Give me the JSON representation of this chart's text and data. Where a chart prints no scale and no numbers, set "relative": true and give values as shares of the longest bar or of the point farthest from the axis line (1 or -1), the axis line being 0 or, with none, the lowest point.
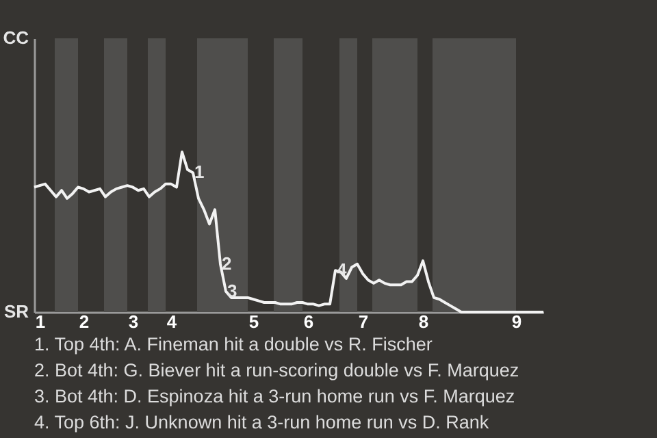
{
  "chart_data": {
    "type": "line",
    "relative": true,
    "categories": [
      null,
      "1",
      null,
      null,
      null,
      null,
      null,
      null,
      null,
      "2",
      null,
      null,
      null,
      null,
      null,
      null,
      null,
      null,
      "3",
      null,
      null,
      null,
      null,
      null,
      null,
      "4",
      null,
      null,
      null,
      null,
      null,
      null,
      null,
      null,
      null,
      null,
      null,
      null,
      null,
      null,
      "5",
      null,
      null,
      null,
      null,
      null,
      null,
      null,
      null,
      null,
      "6",
      null,
      null,
      null,
      null,
      null,
      null,
      null,
      null,
      null,
      "7",
      null,
      null,
      null,
      null,
      null,
      null,
      null,
      null,
      null,
      null,
      "8",
      null,
      null,
      null,
      null,
      null,
      null,
      null,
      null,
      null,
      null,
      null,
      null,
      null,
      null,
      null,
      null,
      "9",
      null,
      null,
      null,
      null,
      null
    ],
    "values": [
      0.78,
      0.79,
      0.8,
      0.76,
      0.72,
      0.76,
      0.71,
      0.74,
      0.78,
      0.77,
      0.75,
      0.76,
      0.77,
      0.72,
      0.75,
      0.77,
      0.78,
      0.79,
      0.78,
      0.76,
      0.77,
      0.72,
      0.75,
      0.77,
      0.8,
      0.8,
      0.78,
      1,
      0.89,
      0.87,
      0.71,
      0.64,
      0.55,
      0.64,
      0.3,
      0.13,
      0.09,
      0.09,
      0.09,
      0.09,
      0.08,
      0.07,
      0.06,
      0.06,
      0.06,
      0.05,
      0.05,
      0.05,
      0.06,
      0.06,
      0.05,
      0.05,
      0.04,
      0.05,
      0.05,
      0.26,
      0.25,
      0.21,
      0.28,
      0.3,
      0.24,
      0.2,
      0.18,
      0.2,
      0.18,
      0.17,
      0.17,
      0.17,
      0.19,
      0.19,
      0.23,
      0.32,
      0.19,
      0.09,
      0.08,
      0.06,
      0.04,
      0.02,
      0,
      0,
      0,
      0,
      0,
      0,
      0,
      0,
      0,
      0,
      0,
      0,
      0,
      0,
      0,
      0
    ],
    "color": "#f2f2f2",
    "annotations": [
      {
        "text": "1",
        "y": 0.87
      },
      {
        "text": "2",
        "y": 0.3
      },
      {
        "text": "3",
        "y": 0.13
      },
      {
        "text": "4",
        "y": 0.26
      },
      "CC",
      "SR",
      "1. Top 4th: A. Fineman hit a double vs R. Fischer",
      "2. Bot 4th: G. Biever hit a run-scoring double vs F. Marquez",
      "3. Bot 4th: D. Espinoza hit a 3-run home run vs F. Marquez",
      "4. Top 6th: J. Unknown hit a 3-run home run vs D. Rank"
    ]
  }
}
